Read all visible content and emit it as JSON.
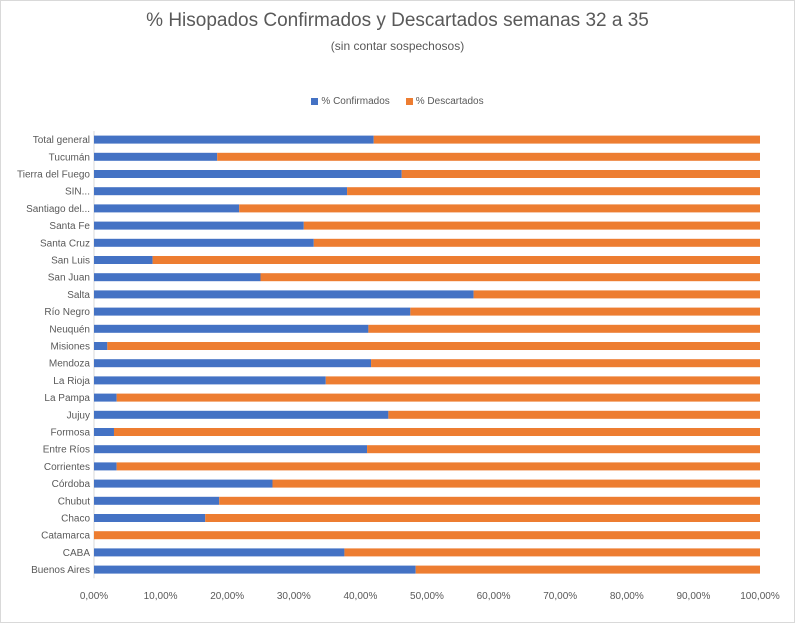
{
  "chart_data": {
    "type": "bar",
    "orientation": "horizontal",
    "stacked": "100%",
    "title": "% Hisopados Confirmados y Descartados semanas 32 a 35",
    "subtitle": "(sin contar sospechosos)",
    "legend_position": "top",
    "categories": [
      "Total general",
      "Tucumán",
      "Tierra del Fuego",
      "SIN...",
      "Santiago del...",
      "Santa Fe",
      "Santa Cruz",
      "San Luis",
      "San Juan",
      "Salta",
      "Río Negro",
      "Neuquén",
      "Misiones",
      "Mendoza",
      "La Rioja",
      "La Pampa",
      "Jujuy",
      "Formosa",
      "Entre Ríos",
      "Corrientes",
      "Córdoba",
      "Chubut",
      "Chaco",
      "Catamarca",
      "CABA",
      "Buenos Aires"
    ],
    "series": [
      {
        "name": "% Confirmados",
        "color": "#4472c4",
        "values": [
          42.0,
          18.5,
          46.2,
          38.0,
          21.8,
          31.5,
          33.0,
          8.8,
          25.0,
          57.0,
          47.5,
          41.2,
          2.0,
          41.6,
          34.8,
          3.4,
          44.2,
          3.0,
          41.0,
          3.4,
          26.8,
          18.8,
          16.7,
          0.0,
          37.6,
          48.3
        ]
      },
      {
        "name": "% Descartados",
        "color": "#ed7d31",
        "values": [
          58.0,
          81.5,
          53.8,
          62.0,
          78.2,
          68.5,
          67.0,
          91.2,
          75.0,
          43.0,
          52.5,
          58.8,
          98.0,
          58.4,
          65.2,
          96.6,
          55.8,
          97.0,
          59.0,
          96.6,
          73.2,
          81.2,
          83.3,
          100.0,
          62.4,
          51.7
        ]
      }
    ],
    "xlim": [
      0,
      100
    ],
    "x_ticks": [
      "0,00%",
      "10,00%",
      "20,00%",
      "30,00%",
      "40,00%",
      "50,00%",
      "60,00%",
      "70,00%",
      "80,00%",
      "90,00%",
      "100,00%"
    ],
    "grid": false
  }
}
